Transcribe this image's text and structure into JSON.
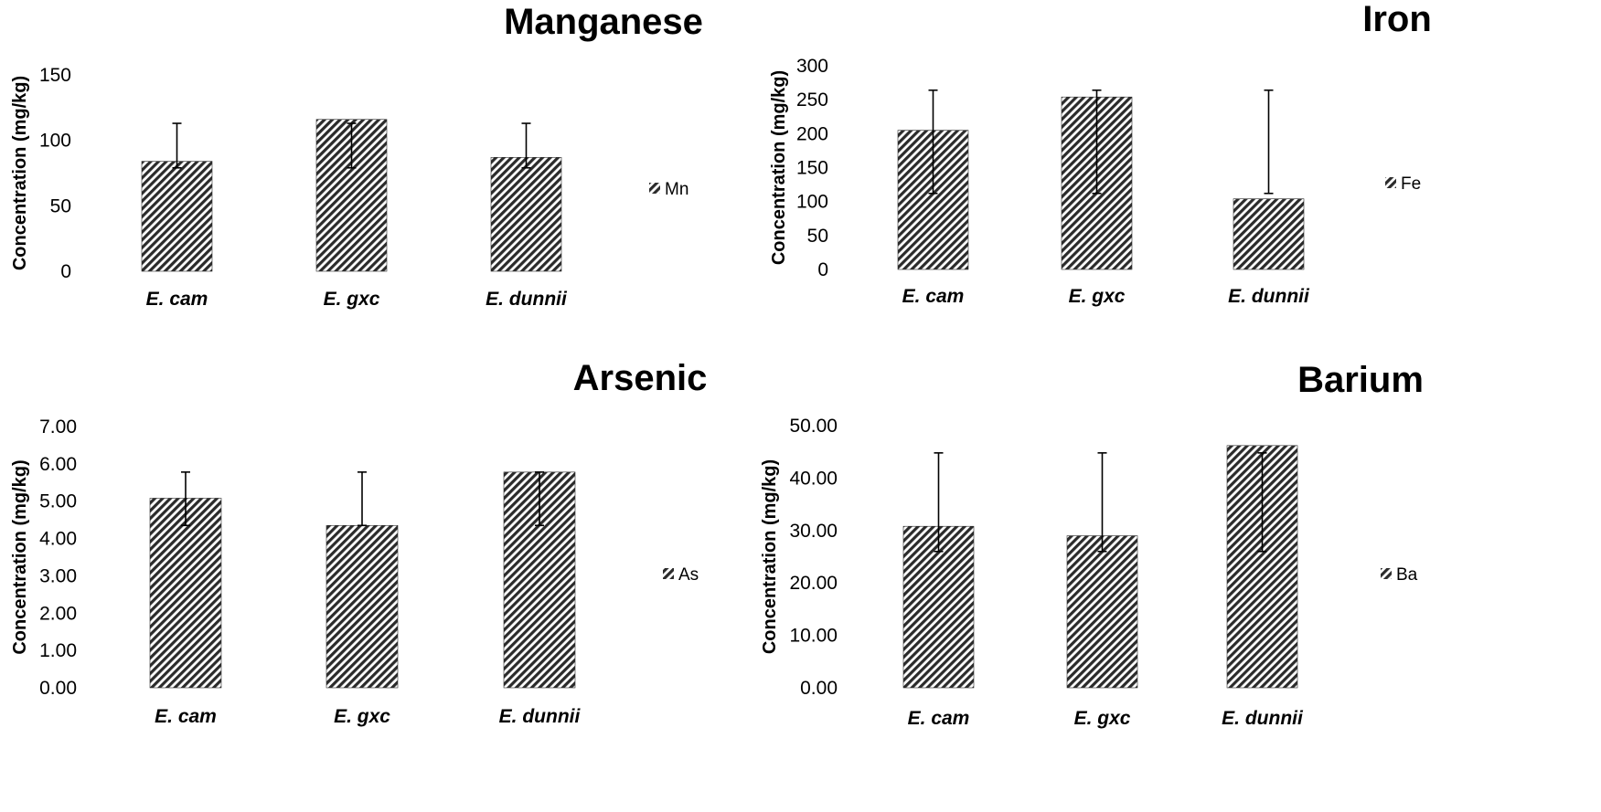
{
  "chart_data": [
    {
      "type": "bar",
      "title": "Manganese",
      "ylabel": "Concentration (mg/kg)",
      "xlabel": "",
      "categories": [
        "E. cam",
        "E. gxc",
        "E. dunnii"
      ],
      "series": [
        {
          "name": "Mn",
          "values": [
            84,
            116,
            87
          ],
          "error_low": [
            79,
            79,
            79
          ],
          "error_high": [
            113,
            113,
            113
          ]
        }
      ],
      "yticks": [
        "0",
        "50",
        "100",
        "150"
      ],
      "ylim": [
        0,
        150
      ],
      "grid": false,
      "legend": "right"
    },
    {
      "type": "bar",
      "title": "Iron",
      "ylabel": "Concentration (mg/kg)",
      "xlabel": "",
      "categories": [
        "E. cam",
        "E. gxc",
        "E. dunnii"
      ],
      "series": [
        {
          "name": "Fe",
          "values": [
            205,
            254,
            104
          ],
          "error_low": [
            112,
            112,
            112
          ],
          "error_high": [
            264,
            264,
            264
          ]
        }
      ],
      "yticks": [
        "0",
        "50",
        "100",
        "150",
        "200",
        "250",
        "300"
      ],
      "ylim": [
        0,
        300
      ],
      "grid": false,
      "legend": "right"
    },
    {
      "type": "bar",
      "title": "Arsenic",
      "ylabel": "Concentration (mg/kg)",
      "xlabel": "",
      "categories": [
        "E. cam",
        "E. gxc",
        "E. dunnii"
      ],
      "series": [
        {
          "name": "As",
          "values": [
            5.08,
            4.35,
            5.78
          ],
          "error_low": [
            4.35,
            4.35,
            4.35
          ],
          "error_high": [
            5.78,
            5.78,
            5.78
          ]
        }
      ],
      "yticks": [
        "0.00",
        "1.00",
        "2.00",
        "3.00",
        "4.00",
        "5.00",
        "6.00",
        "7.00"
      ],
      "ylim": [
        0,
        7
      ],
      "grid": false,
      "legend": "right"
    },
    {
      "type": "bar",
      "title": "Barium",
      "ylabel": "Concentration (mg/kg)",
      "xlabel": "",
      "categories": [
        "E. cam",
        "E. gxc",
        "E. dunnii"
      ],
      "series": [
        {
          "name": "Ba",
          "values": [
            30.8,
            29.0,
            46.2
          ],
          "error_low": [
            26,
            26,
            26
          ],
          "error_high": [
            44.8,
            44.8,
            44.8
          ]
        }
      ],
      "yticks": [
        "0.00",
        "10.00",
        "20.00",
        "30.00",
        "40.00",
        "50.00"
      ],
      "ylim": [
        0,
        50
      ],
      "grid": false,
      "legend": "right"
    }
  ],
  "colors": {
    "bar_fill": "#2b2b2b",
    "bar_background": "#ffffff",
    "error_bar": "#000000",
    "text": "#000000"
  }
}
